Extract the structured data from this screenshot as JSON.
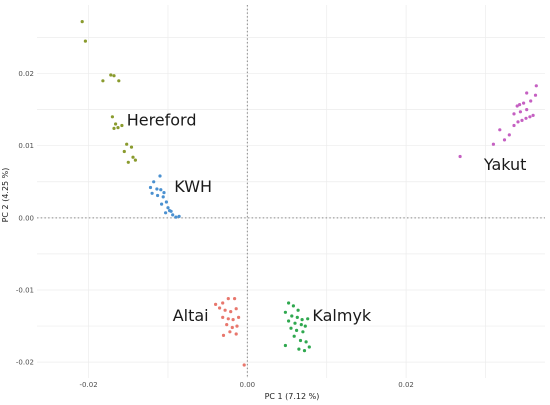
{
  "chart_data": {
    "type": "scatter",
    "xlabel": "PC 1 (7.12 %)",
    "ylabel": "PC 2 (4.25 %)",
    "xlim": [
      -0.0265,
      0.0375
    ],
    "ylim": [
      -0.0222,
      0.0295
    ],
    "x_ticks": [
      -0.02,
      0.0,
      0.02
    ],
    "x_tick_labels": [
      "-0.02",
      "0.00",
      "0.02"
    ],
    "y_ticks": [
      -0.02,
      -0.01,
      0.0,
      0.01,
      0.02
    ],
    "y_tick_labels": [
      "-0.02",
      "-0.01",
      "0.00",
      "0.01",
      "0.02"
    ],
    "grid": true,
    "zero_lines": true,
    "groups": [
      {
        "name": "Hereford",
        "color": "#8a9b2e",
        "label_pos": [
          -0.0152,
          0.0128
        ],
        "points": [
          [
            -0.0208,
            0.0272
          ],
          [
            -0.0204,
            0.0245
          ],
          [
            -0.0182,
            0.019
          ],
          [
            -0.0172,
            0.0198
          ],
          [
            -0.0168,
            0.0197
          ],
          [
            -0.0162,
            0.019
          ],
          [
            -0.017,
            0.014
          ],
          [
            -0.0166,
            0.013
          ],
          [
            -0.0163,
            0.0125
          ],
          [
            -0.0168,
            0.0124
          ],
          [
            -0.0158,
            0.0128
          ],
          [
            -0.0152,
            0.0102
          ],
          [
            -0.0146,
            0.0098
          ],
          [
            -0.0155,
            0.0092
          ],
          [
            -0.0144,
            0.0084
          ],
          [
            -0.0141,
            0.008
          ],
          [
            -0.015,
            0.0077
          ]
        ]
      },
      {
        "name": "KWH",
        "color": "#4a90d0",
        "label_pos": [
          -0.0092,
          0.0036
        ],
        "points": [
          [
            -0.011,
            0.0058
          ],
          [
            -0.0118,
            0.005
          ],
          [
            -0.0122,
            0.0042
          ],
          [
            -0.0114,
            0.004
          ],
          [
            -0.0109,
            0.0039
          ],
          [
            -0.012,
            0.0034
          ],
          [
            -0.0113,
            0.0031
          ],
          [
            -0.0106,
            0.0029
          ],
          [
            -0.0102,
            0.0022
          ],
          [
            -0.0108,
            0.0019
          ],
          [
            -0.01,
            0.0014
          ],
          [
            -0.0096,
            0.0009
          ],
          [
            -0.0103,
            0.0007
          ],
          [
            -0.0094,
            0.0004
          ],
          [
            -0.009,
            0.0001
          ],
          [
            -0.0086,
            0.0002
          ],
          [
            -0.0098,
            0.001
          ],
          [
            -0.0105,
            0.0035
          ]
        ]
      },
      {
        "name": "Altai",
        "color": "#e8776d",
        "label_pos": [
          -0.0094,
          -0.0143
        ],
        "points": [
          [
            -0.004,
            -0.012
          ],
          [
            -0.0031,
            -0.0118
          ],
          [
            -0.0024,
            -0.0112
          ],
          [
            -0.0016,
            -0.0112
          ],
          [
            -0.0035,
            -0.0125
          ],
          [
            -0.0028,
            -0.0128
          ],
          [
            -0.0021,
            -0.013
          ],
          [
            -0.0014,
            -0.0126
          ],
          [
            -0.0031,
            -0.0138
          ],
          [
            -0.0024,
            -0.014
          ],
          [
            -0.0018,
            -0.0141
          ],
          [
            -0.0011,
            -0.0138
          ],
          [
            -0.0026,
            -0.0148
          ],
          [
            -0.0019,
            -0.0152
          ],
          [
            -0.0013,
            -0.015
          ],
          [
            -0.0022,
            -0.0158
          ],
          [
            -0.0014,
            -0.0161
          ],
          [
            -0.003,
            -0.0163
          ],
          [
            -0.0004,
            -0.0204
          ]
        ]
      },
      {
        "name": "Kalmyk",
        "color": "#2fa84f",
        "label_pos": [
          0.0082,
          -0.0143
        ],
        "points": [
          [
            0.0052,
            -0.0118
          ],
          [
            0.0058,
            -0.0122
          ],
          [
            0.0064,
            -0.0128
          ],
          [
            0.0048,
            -0.0131
          ],
          [
            0.0056,
            -0.0136
          ],
          [
            0.0063,
            -0.0138
          ],
          [
            0.0069,
            -0.0141
          ],
          [
            0.0076,
            -0.014
          ],
          [
            0.0052,
            -0.0143
          ],
          [
            0.006,
            -0.0146
          ],
          [
            0.0068,
            -0.0148
          ],
          [
            0.0073,
            -0.015
          ],
          [
            0.0055,
            -0.0153
          ],
          [
            0.0062,
            -0.0156
          ],
          [
            0.007,
            -0.0158
          ],
          [
            0.0059,
            -0.0164
          ],
          [
            0.0067,
            -0.017
          ],
          [
            0.0074,
            -0.0172
          ],
          [
            0.0078,
            -0.0179
          ],
          [
            0.0065,
            -0.0182
          ],
          [
            0.0072,
            -0.0184
          ],
          [
            0.0048,
            -0.0177
          ]
        ]
      },
      {
        "name": "Yakut",
        "color": "#c560c2",
        "label_pos": [
          0.0298,
          0.0066
        ],
        "points": [
          [
            0.0268,
            0.0085
          ],
          [
            0.031,
            0.0102
          ],
          [
            0.0324,
            0.0108
          ],
          [
            0.033,
            0.0115
          ],
          [
            0.0336,
            0.0128
          ],
          [
            0.0341,
            0.0133
          ],
          [
            0.0346,
            0.0135
          ],
          [
            0.0351,
            0.0138
          ],
          [
            0.0356,
            0.014
          ],
          [
            0.036,
            0.0142
          ],
          [
            0.0336,
            0.0144
          ],
          [
            0.0344,
            0.0147
          ],
          [
            0.0352,
            0.015
          ],
          [
            0.034,
            0.0155
          ],
          [
            0.0348,
            0.0159
          ],
          [
            0.0357,
            0.0162
          ],
          [
            0.0363,
            0.017
          ],
          [
            0.0352,
            0.0173
          ],
          [
            0.0343,
            0.0157
          ],
          [
            0.0364,
            0.0183
          ],
          [
            0.0318,
            0.0122
          ]
        ]
      }
    ]
  }
}
